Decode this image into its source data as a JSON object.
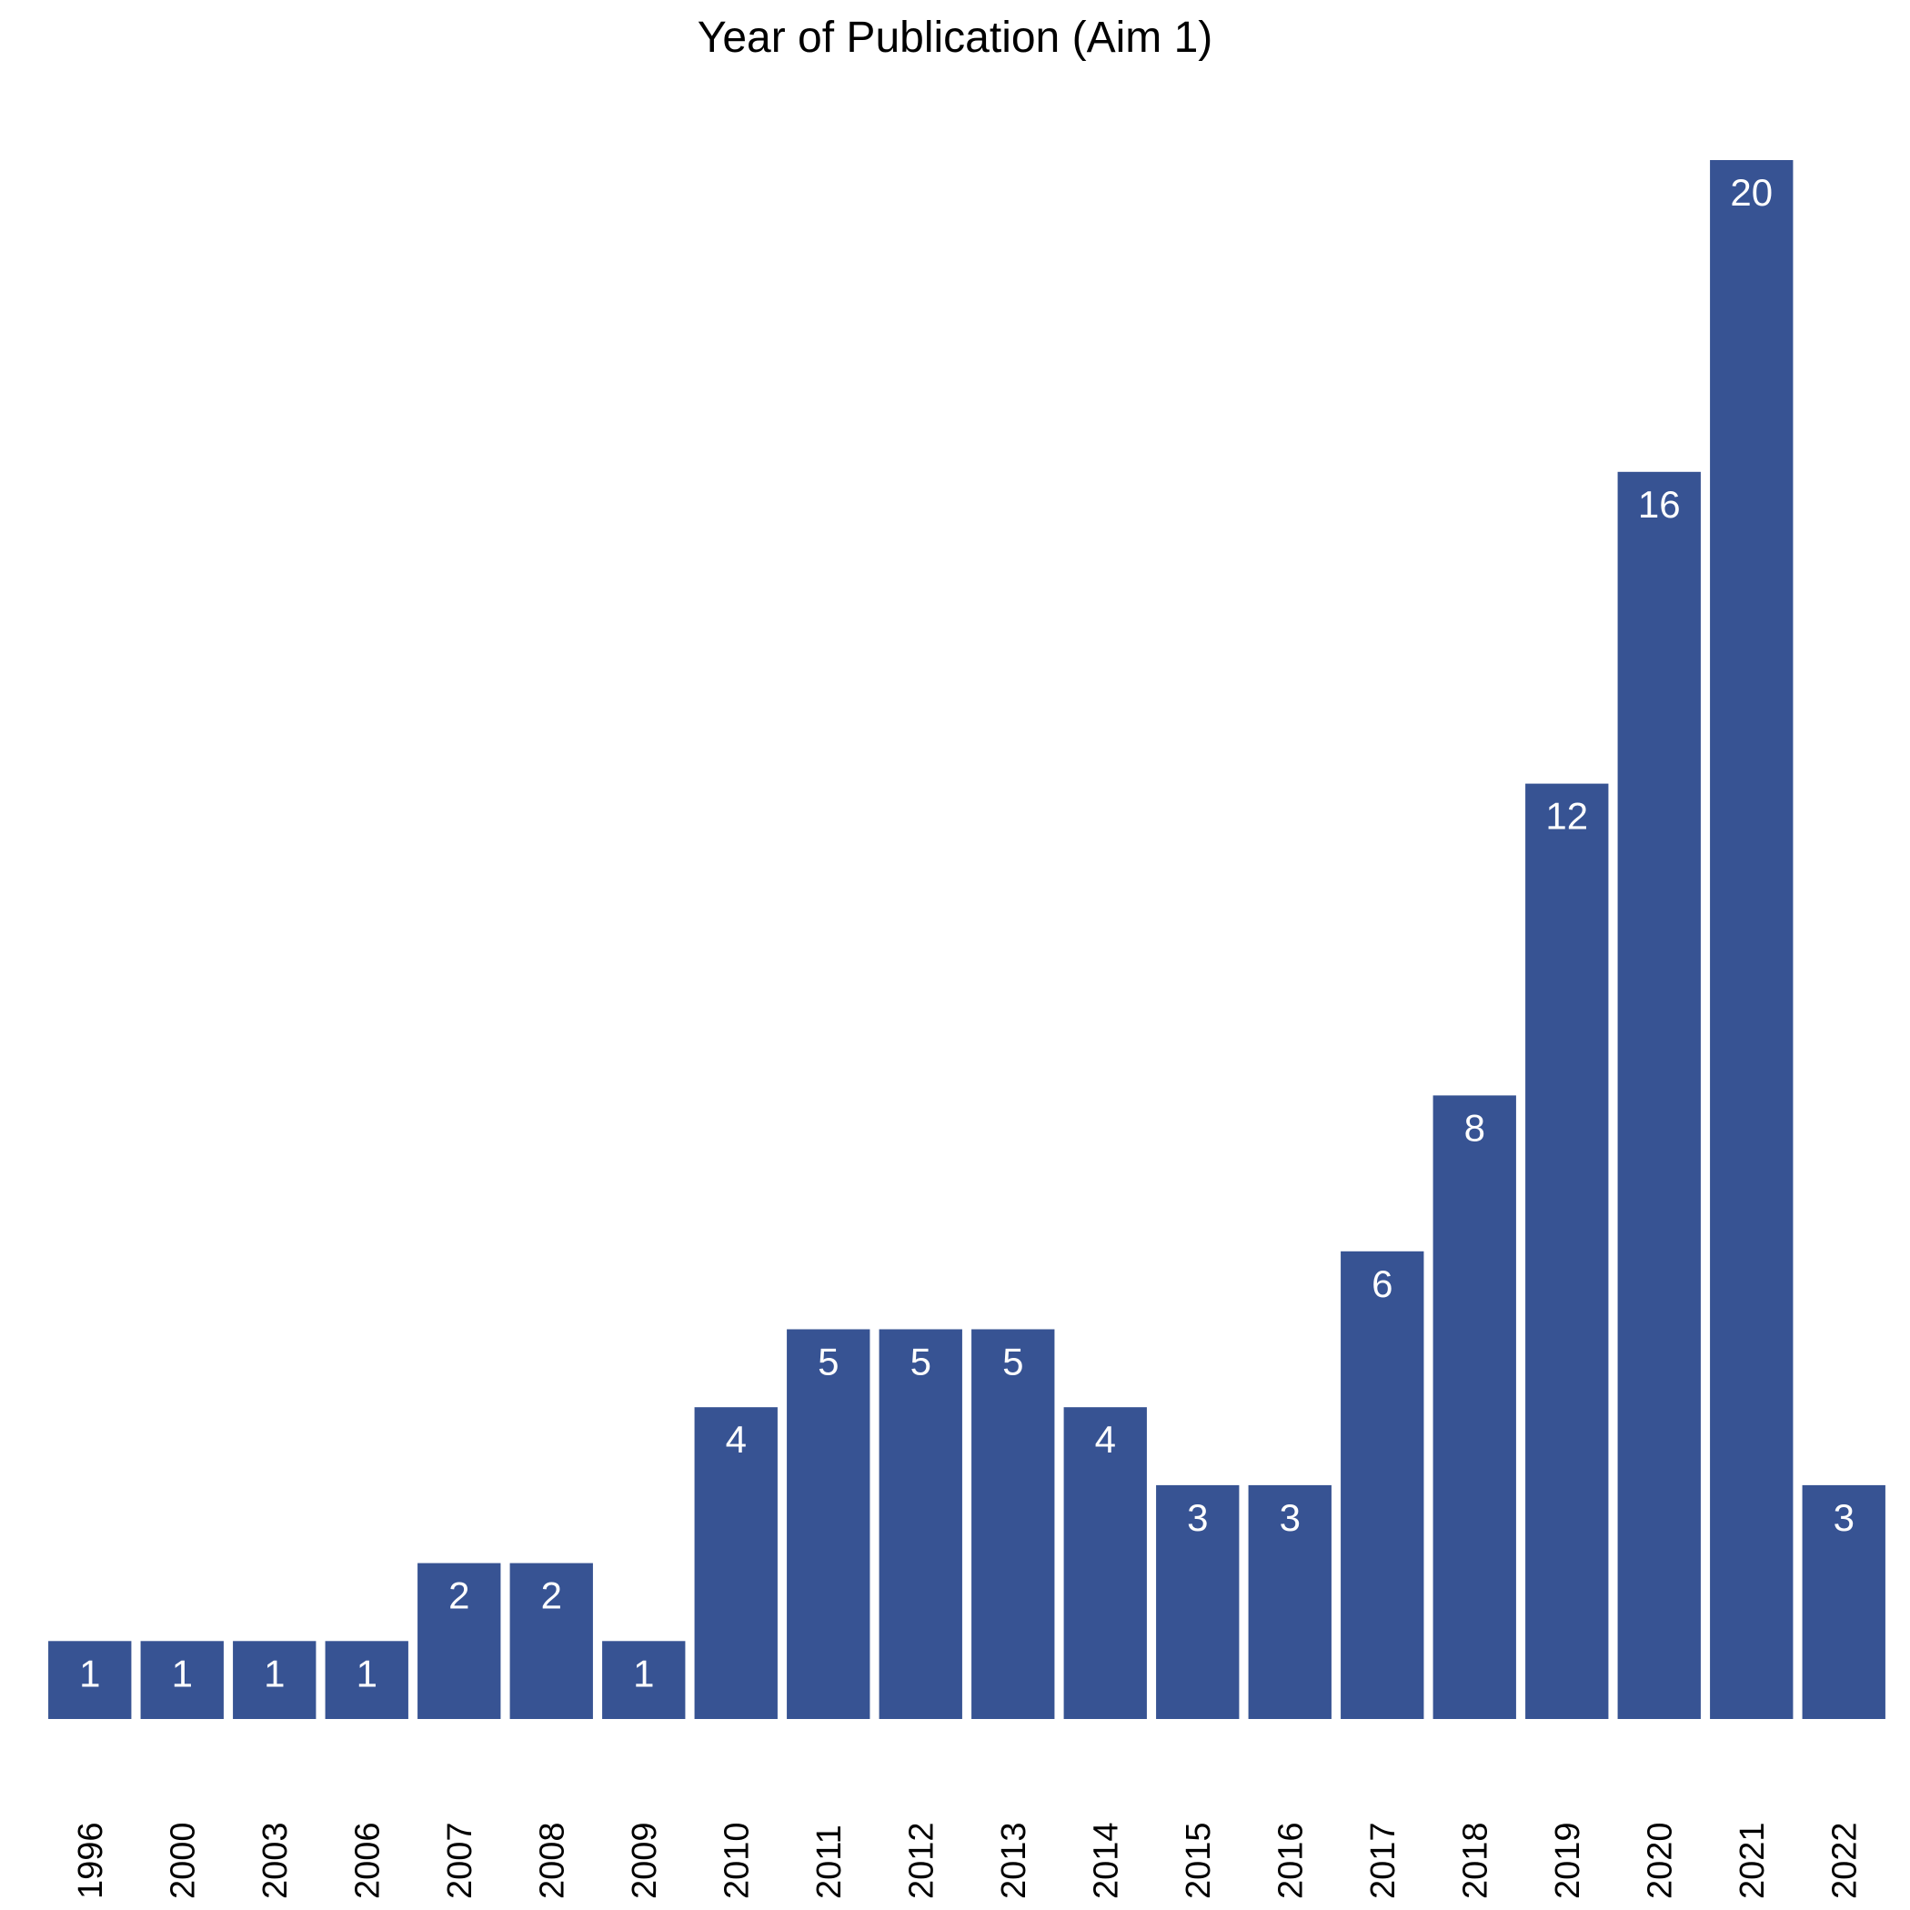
{
  "chart_data": {
    "type": "bar",
    "title": "Year of Publication (Aim 1)",
    "xlabel": "",
    "ylabel": "",
    "categories": [
      "1996",
      "2000",
      "2003",
      "2006",
      "2007",
      "2008",
      "2009",
      "2010",
      "2011",
      "2012",
      "2013",
      "2014",
      "2015",
      "2016",
      "2017",
      "2018",
      "2019",
      "2020",
      "2021",
      "2022"
    ],
    "values": [
      1,
      1,
      1,
      1,
      2,
      2,
      1,
      4,
      5,
      5,
      5,
      4,
      3,
      3,
      6,
      8,
      12,
      16,
      20,
      3
    ],
    "ylim": [
      0,
      20
    ],
    "bar_color": "#375393",
    "label_color": "#ffffff",
    "grid": false,
    "data_labels": true,
    "x_tick_rotation": -90
  }
}
